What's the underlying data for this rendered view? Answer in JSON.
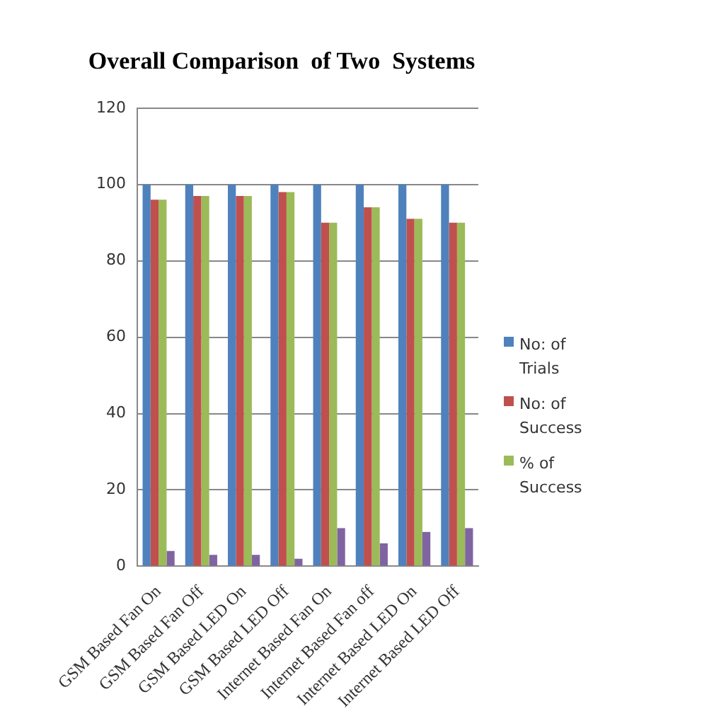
{
  "chart_data": {
    "type": "bar",
    "title": "Overall Comparison  of Two  Systems",
    "categories": [
      "GSM Based Fan On",
      "GSM Based Fan Off",
      "GSM Based LED On",
      "GSM Based LED Off",
      "Internet Based Fan On",
      "Internet Based Fan off",
      "Internet Based LED On",
      "Internet Based LED Off"
    ],
    "series": [
      {
        "name": "No: of Trials",
        "color": "#4f81bd",
        "values": [
          100,
          100,
          100,
          100,
          100,
          100,
          100,
          100
        ]
      },
      {
        "name": "No: of Success",
        "color": "#c0504d",
        "values": [
          96,
          97,
          97,
          98,
          90,
          94,
          91,
          90
        ]
      },
      {
        "name": "% of Success",
        "color": "#9bbb59",
        "values": [
          96,
          97,
          97,
          98,
          90,
          94,
          91,
          90
        ]
      },
      {
        "color": "#8064a2",
        "values": [
          4,
          3,
          3,
          2,
          10,
          6,
          9,
          10
        ]
      }
    ],
    "ylim": [
      0,
      120
    ],
    "yticks": [
      0,
      20,
      40,
      60,
      80,
      100,
      120
    ],
    "grid": "y",
    "legend": "right"
  }
}
